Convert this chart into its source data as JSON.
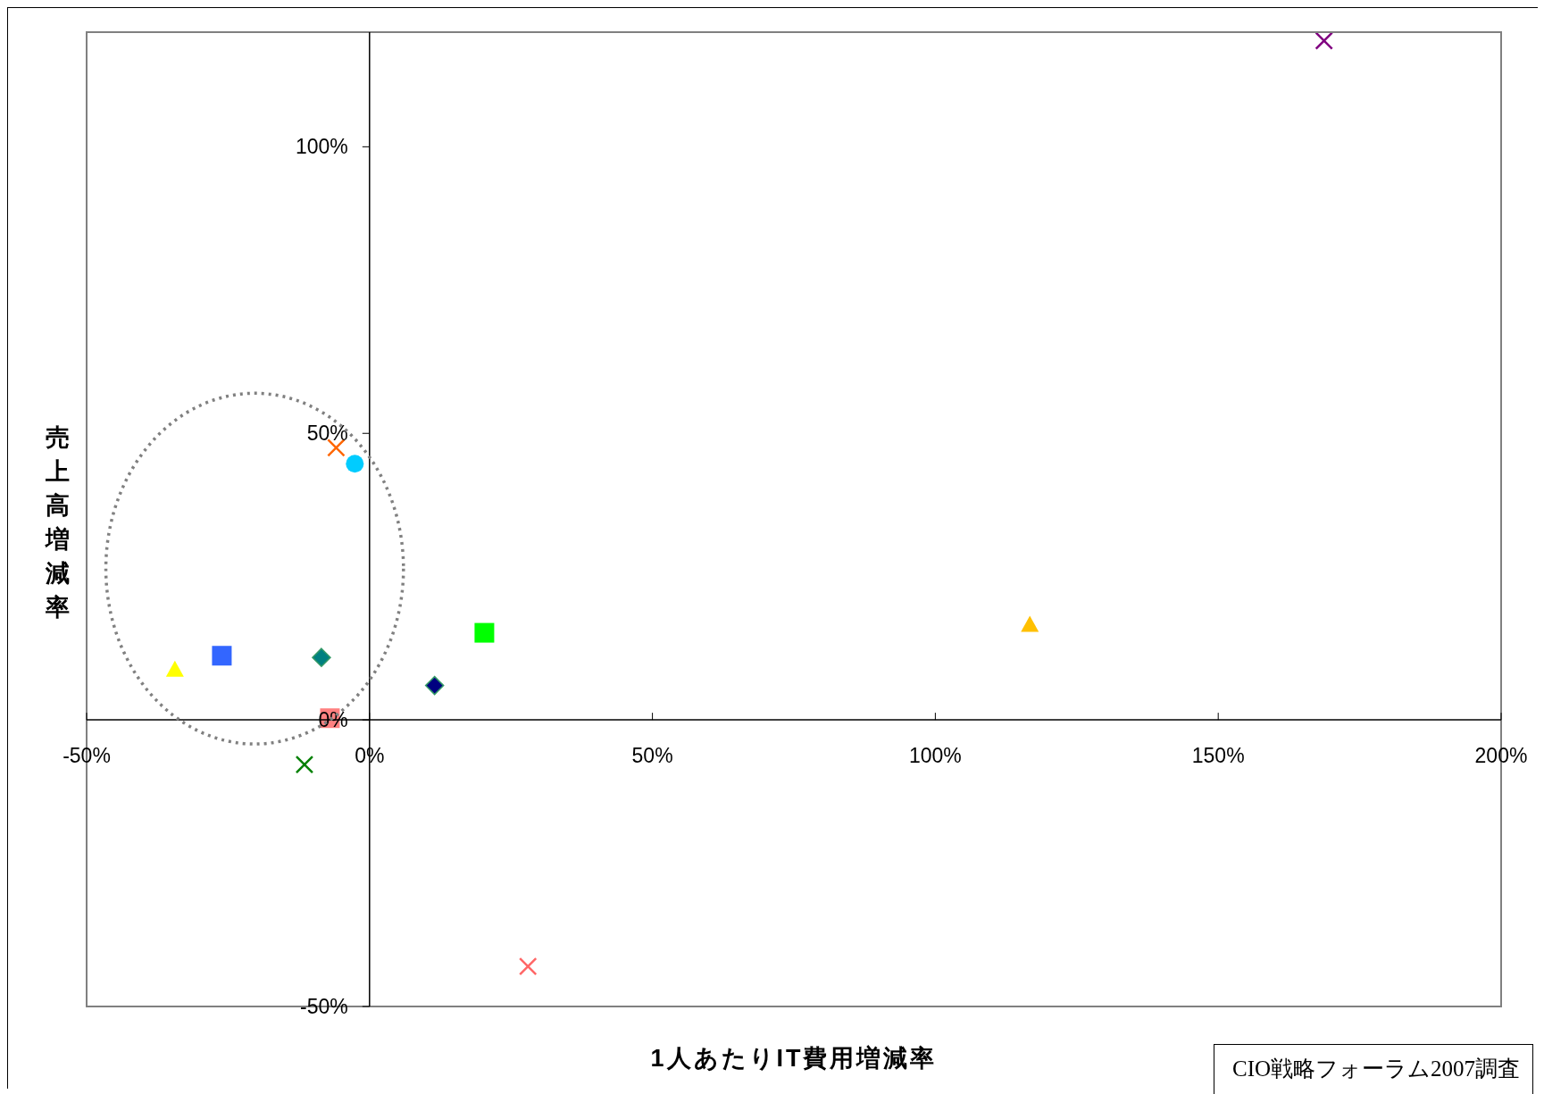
{
  "chart_data": {
    "type": "scatter",
    "xlabel": "1人あたりIT費用増減率",
    "ylabel": "売上高増減率",
    "annotations": [
      "CIO戦略フォーラム2007調査"
    ],
    "xlim": [
      -50,
      200
    ],
    "ylim": [
      -50,
      120
    ],
    "xticks": [
      {
        "value": -50,
        "label": "-50%"
      },
      {
        "value": 0,
        "label": "0%"
      },
      {
        "value": 50,
        "label": "50%"
      },
      {
        "value": 100,
        "label": "100%"
      },
      {
        "value": 150,
        "label": "150%"
      },
      {
        "value": 200,
        "label": "200%"
      }
    ],
    "yticks": [
      {
        "value": -50,
        "label": "-50%"
      },
      {
        "value": 0,
        "label": "0%"
      },
      {
        "value": 50,
        "label": "50%"
      },
      {
        "value": 100,
        "label": "100%"
      }
    ],
    "series": [
      {
        "color": "#800080",
        "marker": "cross",
        "x": [
          168.7
        ],
        "values": [
          118.5
        ]
      },
      {
        "color": "#ff6600",
        "marker": "cross",
        "x": [
          -5.9
        ],
        "values": [
          47.5
        ]
      },
      {
        "color": "#00ccff",
        "marker": "circle",
        "x": [
          -2.6
        ],
        "values": [
          44.7
        ]
      },
      {
        "color": "#ffff00",
        "marker": "triangle",
        "x": [
          -34.4
        ],
        "values": [
          8.8
        ]
      },
      {
        "color": "#3366ff",
        "marker": "square",
        "x": [
          -26.1
        ],
        "values": [
          11.2
        ]
      },
      {
        "color": "#008080",
        "marker": "diamond",
        "x": [
          -8.5
        ],
        "values": [
          10.9
        ]
      },
      {
        "color": "#ff8080",
        "marker": "square",
        "x": [
          -7
        ],
        "values": [
          0.3
        ]
      },
      {
        "color": "#008000",
        "marker": "cross",
        "x": [
          -11.5
        ],
        "values": [
          -7.8
        ]
      },
      {
        "color": "#000080",
        "marker": "diamond",
        "x": [
          11.5
        ],
        "values": [
          6
        ]
      },
      {
        "color": "#00ff00",
        "marker": "square",
        "x": [
          20.3
        ],
        "values": [
          15.2
        ]
      },
      {
        "color": "#ffc000",
        "marker": "triangle",
        "x": [
          116.7
        ],
        "values": [
          16.6
        ]
      },
      {
        "color": "#ff6666",
        "marker": "cross",
        "x": [
          28
        ],
        "values": [
          -43
        ]
      }
    ]
  }
}
